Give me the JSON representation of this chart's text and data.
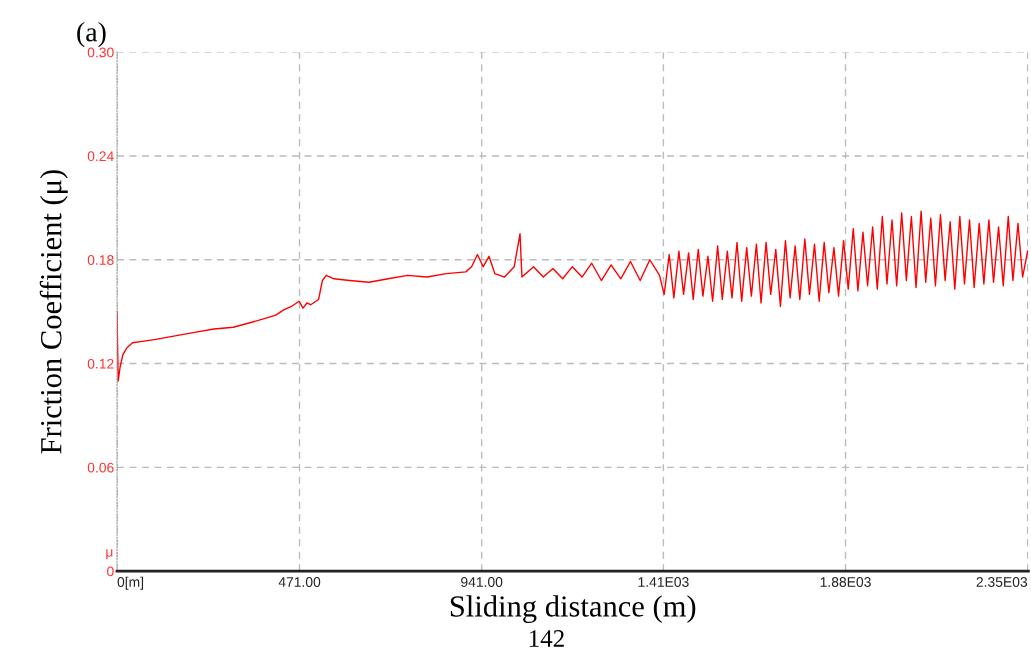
{
  "chart_data": {
    "type": "line",
    "title": "(a)",
    "xlabel": "Sliding distance (m)",
    "ylabel": "Friction Coefficient (μ)",
    "annotations": [
      "μ",
      "142"
    ],
    "xlim": [
      0,
      2352
    ],
    "ylim": [
      0,
      0.3
    ],
    "xticks": [
      {
        "value": 0,
        "label": "0[m]"
      },
      {
        "value": 471,
        "label": "471.00"
      },
      {
        "value": 941,
        "label": "941.00"
      },
      {
        "value": 1410,
        "label": "1.41E03"
      },
      {
        "value": 1880,
        "label": "1.88E03"
      },
      {
        "value": 2350,
        "label": "2.35E03"
      }
    ],
    "yticks": [
      {
        "value": 0,
        "label": "0"
      },
      {
        "value": 0.06,
        "label": "0.06"
      },
      {
        "value": 0.12,
        "label": "0.12"
      },
      {
        "value": 0.18,
        "label": "0.18"
      },
      {
        "value": 0.24,
        "label": "0.24"
      },
      {
        "value": 0.3,
        "label": "0.30"
      }
    ],
    "grid": true,
    "line_style": "solid",
    "marker": "none",
    "series": [
      {
        "color": "#ff0000",
        "x": [
          0,
          3,
          8,
          15,
          25,
          40,
          70,
          100,
          150,
          200,
          250,
          300,
          350,
          380,
          410,
          430,
          450,
          470,
          480,
          490,
          500,
          520,
          530,
          540,
          560,
          600,
          650,
          700,
          750,
          800,
          850,
          900,
          915,
          930,
          945,
          960,
          975,
          1000,
          1025,
          1040,
          1045,
          1075,
          1100,
          1125,
          1150,
          1175,
          1200,
          1225,
          1250,
          1275,
          1300,
          1325,
          1350,
          1375,
          1400,
          1412,
          1425,
          1437,
          1450,
          1462,
          1475,
          1487,
          1500,
          1512,
          1525,
          1537,
          1550,
          1562,
          1575,
          1587,
          1600,
          1612,
          1625,
          1637,
          1650,
          1662,
          1675,
          1687,
          1700,
          1712,
          1725,
          1737,
          1750,
          1762,
          1775,
          1787,
          1800,
          1812,
          1825,
          1837,
          1850,
          1862,
          1875,
          1887,
          1900,
          1912,
          1925,
          1937,
          1950,
          1962,
          1975,
          1987,
          2000,
          2012,
          2025,
          2037,
          2050,
          2062,
          2075,
          2087,
          2100,
          2112,
          2125,
          2137,
          2150,
          2162,
          2175,
          2187,
          2200,
          2212,
          2225,
          2237,
          2250,
          2262,
          2275,
          2287,
          2300,
          2312,
          2325,
          2337,
          2350
        ],
        "values": [
          0.15,
          0.11,
          0.118,
          0.125,
          0.129,
          0.132,
          0.133,
          0.134,
          0.136,
          0.138,
          0.14,
          0.141,
          0.144,
          0.146,
          0.148,
          0.151,
          0.153,
          0.156,
          0.152,
          0.155,
          0.154,
          0.157,
          0.168,
          0.171,
          0.169,
          0.168,
          0.167,
          0.169,
          0.171,
          0.17,
          0.172,
          0.173,
          0.176,
          0.183,
          0.176,
          0.182,
          0.172,
          0.17,
          0.176,
          0.195,
          0.17,
          0.176,
          0.17,
          0.175,
          0.169,
          0.176,
          0.17,
          0.178,
          0.168,
          0.177,
          0.169,
          0.179,
          0.168,
          0.18,
          0.171,
          0.16,
          0.183,
          0.158,
          0.185,
          0.16,
          0.184,
          0.157,
          0.186,
          0.159,
          0.182,
          0.156,
          0.188,
          0.157,
          0.185,
          0.158,
          0.19,
          0.156,
          0.187,
          0.159,
          0.189,
          0.155,
          0.19,
          0.16,
          0.186,
          0.153,
          0.191,
          0.158,
          0.188,
          0.157,
          0.192,
          0.16,
          0.189,
          0.156,
          0.19,
          0.161,
          0.187,
          0.159,
          0.191,
          0.163,
          0.198,
          0.162,
          0.196,
          0.165,
          0.199,
          0.163,
          0.205,
          0.166,
          0.203,
          0.165,
          0.207,
          0.168,
          0.205,
          0.164,
          0.208,
          0.167,
          0.204,
          0.165,
          0.206,
          0.168,
          0.202,
          0.163,
          0.205,
          0.166,
          0.203,
          0.164,
          0.201,
          0.166,
          0.203,
          0.167,
          0.199,
          0.165,
          0.205,
          0.168,
          0.201,
          0.17,
          0.185
        ]
      }
    ]
  }
}
